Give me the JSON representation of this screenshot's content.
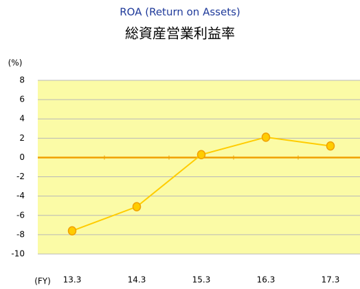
{
  "chart_data": {
    "type": "line",
    "title": "ROA (Return on Assets)",
    "subtitle": "総資産営業利益率",
    "y_label": "(%)",
    "x_label": "(FY)",
    "categories": [
      "13.3",
      "14.3",
      "15.3",
      "16.3",
      "17.3"
    ],
    "series": [
      {
        "name": "ROA",
        "color": "#ffcc00",
        "values": [
          -7.6,
          -5.1,
          0.3,
          2.1,
          1.2
        ]
      }
    ],
    "ylim": [
      -10,
      8
    ],
    "yticks": [
      -10,
      -8,
      -6,
      -4,
      -2,
      0,
      2,
      4,
      6,
      8
    ],
    "grid": true,
    "legend": false
  }
}
